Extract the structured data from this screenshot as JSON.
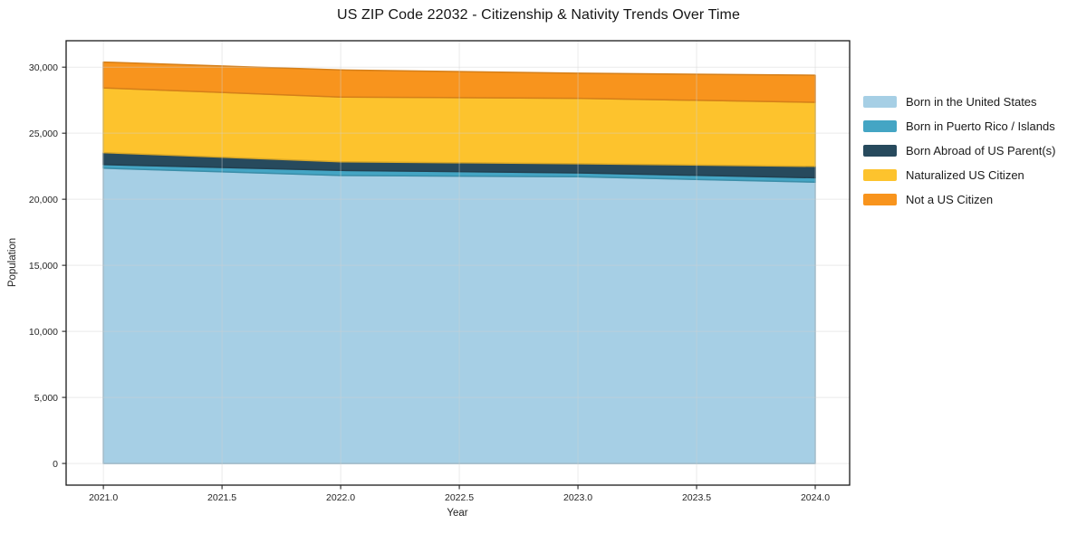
{
  "title": "US ZIP Code 22032 - Citizenship & Nativity Trends Over Time",
  "chart_data": {
    "type": "area",
    "stacked": true,
    "title": "US ZIP Code 22032 - Citizenship & Nativity Trends Over Time",
    "xlabel": "Year",
    "ylabel": "Population",
    "x": [
      2021,
      2022,
      2023,
      2024
    ],
    "series": [
      {
        "name": "Born in the United States",
        "color": "#a6cfe5",
        "values": [
          22350,
          21800,
          21700,
          21300
        ]
      },
      {
        "name": "Born in Puerto Rico / Islands",
        "color": "#44a5c4",
        "values": [
          280,
          380,
          300,
          330
        ]
      },
      {
        "name": "Born Abroad of US Parent(s)",
        "color": "#274a5d",
        "values": [
          900,
          660,
          690,
          860
        ]
      },
      {
        "name": "Naturalized US Citizen",
        "color": "#fdc32d",
        "values": [
          4900,
          4900,
          4950,
          4850
        ]
      },
      {
        "name": "Not a US Citizen",
        "color": "#f8941d",
        "values": [
          1950,
          2050,
          1900,
          2050
        ]
      }
    ],
    "totals": [
      30380,
      29790,
      29540,
      29390
    ],
    "x_ticks": [
      2021.0,
      2021.5,
      2022.0,
      2022.5,
      2023.0,
      2023.5,
      2024.0
    ],
    "x_tick_labels": [
      "2021.0",
      "2021.5",
      "2022.0",
      "2022.5",
      "2023.0",
      "2023.5",
      "2024.0"
    ],
    "y_ticks": [
      0,
      5000,
      10000,
      15000,
      20000,
      25000,
      30000
    ],
    "y_tick_labels": [
      "0",
      "5,000",
      "10,000",
      "15,000",
      "20,000",
      "25,000",
      "30,000"
    ],
    "xlim": [
      2020.843,
      2024.145
    ],
    "ylim": [
      -1640,
      32000
    ],
    "grid": true,
    "legend_position": "right",
    "spine_color": "#1a1a1a",
    "tick_color": "#262626",
    "grid_color": "#d0d0d0"
  }
}
